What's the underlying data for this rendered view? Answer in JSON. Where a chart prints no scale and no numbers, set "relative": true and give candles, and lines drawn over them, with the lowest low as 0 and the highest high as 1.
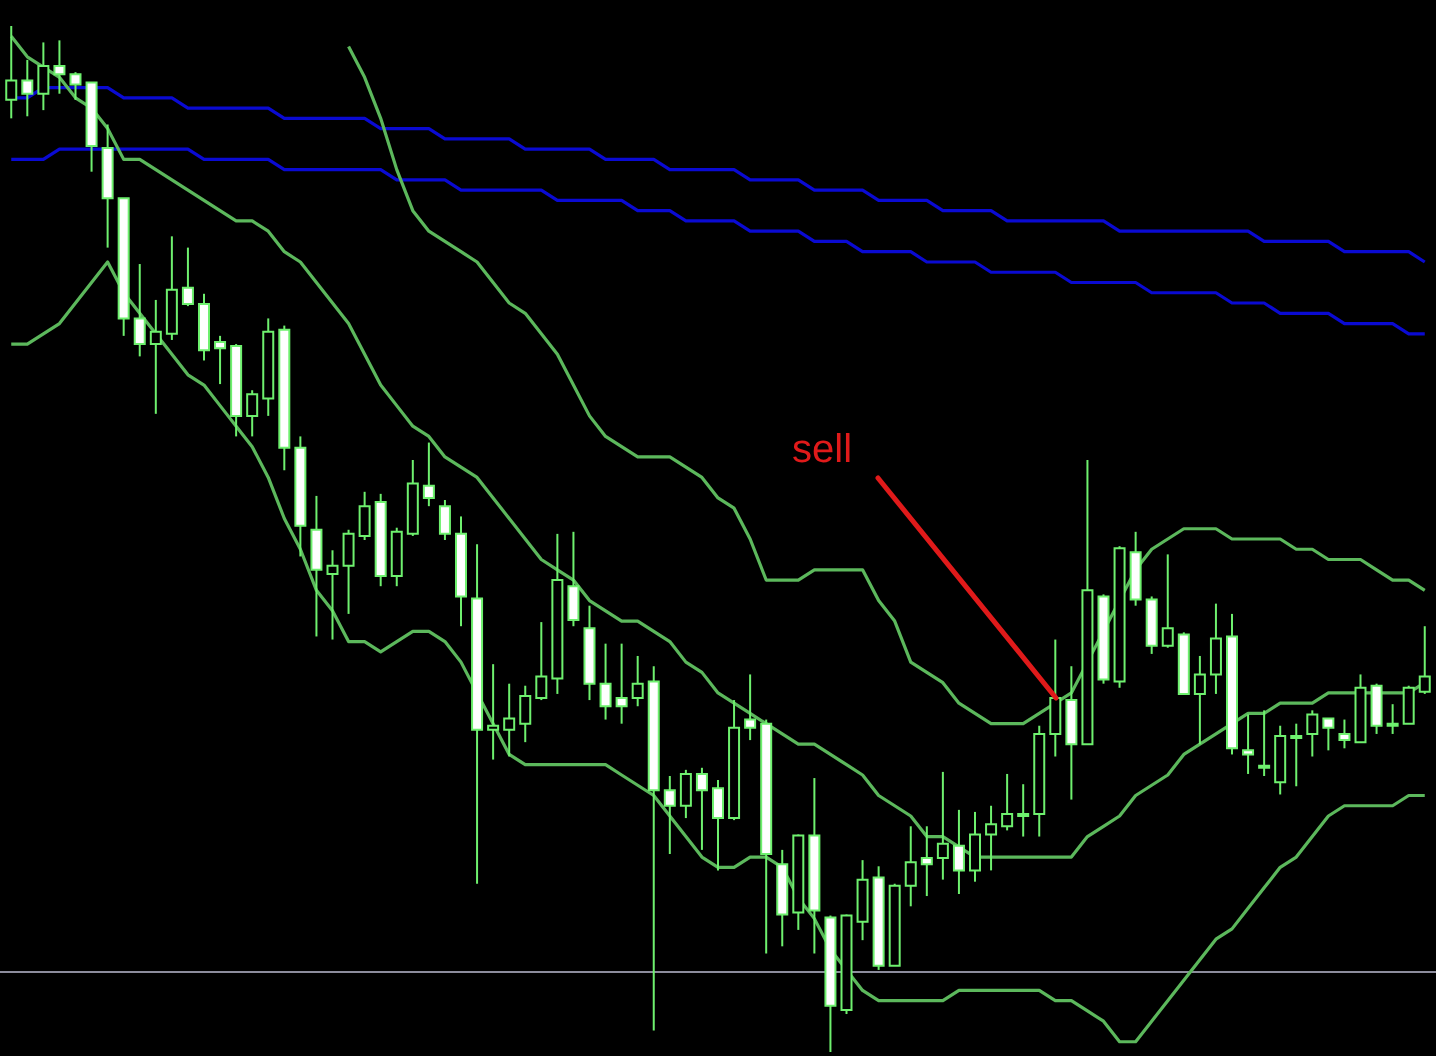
{
  "chart_data": {
    "type": "candlestick",
    "relative": true,
    "categories": [
      null,
      null,
      null,
      null,
      null,
      null,
      null,
      null,
      null,
      null,
      null,
      null,
      null,
      null,
      null,
      null,
      null,
      null,
      null,
      null,
      null,
      null,
      null,
      null,
      null,
      null,
      null,
      null,
      null,
      null,
      null,
      null,
      null,
      null,
      null,
      null,
      null,
      null,
      null,
      null,
      null,
      null,
      null,
      null,
      null,
      null,
      null,
      null,
      null,
      null,
      null,
      null,
      null,
      null,
      null,
      null,
      null,
      null,
      null,
      null,
      null,
      null,
      null,
      null,
      null,
      null,
      null,
      null,
      null,
      null,
      null,
      null,
      null,
      null,
      null,
      null,
      null,
      null,
      null,
      null,
      null,
      null,
      null,
      null,
      null,
      null,
      null,
      null,
      null
    ],
    "ohlc": [
      [
        0.928,
        1.0,
        0.91,
        0.947
      ],
      [
        0.947,
        0.967,
        0.912,
        0.934
      ],
      [
        0.934,
        0.984,
        0.918,
        0.961
      ],
      [
        0.961,
        0.986,
        0.934,
        0.953
      ],
      [
        0.953,
        0.955,
        0.928,
        0.943
      ],
      [
        0.945,
        0.945,
        0.858,
        0.883
      ],
      [
        0.881,
        0.904,
        0.784,
        0.832
      ],
      [
        0.832,
        0.832,
        0.698,
        0.715
      ],
      [
        0.715,
        0.768,
        0.678,
        0.69
      ],
      [
        0.69,
        0.733,
        0.622,
        0.702
      ],
      [
        0.7,
        0.795,
        0.694,
        0.743
      ],
      [
        0.745,
        0.784,
        0.727,
        0.729
      ],
      [
        0.729,
        0.739,
        0.674,
        0.684
      ],
      [
        0.692,
        0.698,
        0.651,
        0.686
      ],
      [
        0.688,
        0.69,
        0.6,
        0.62
      ],
      [
        0.62,
        0.645,
        0.6,
        0.641
      ],
      [
        0.637,
        0.715,
        0.62,
        0.702
      ],
      [
        0.704,
        0.708,
        0.567,
        0.589
      ],
      [
        0.589,
        0.6,
        0.483,
        0.513
      ],
      [
        0.509,
        0.542,
        0.405,
        0.47
      ],
      [
        0.466,
        0.489,
        0.402,
        0.474
      ],
      [
        0.474,
        0.509,
        0.427,
        0.505
      ],
      [
        0.503,
        0.546,
        0.499,
        0.532
      ],
      [
        0.536,
        0.544,
        0.454,
        0.464
      ],
      [
        0.464,
        0.511,
        0.454,
        0.507
      ],
      [
        0.505,
        0.577,
        0.503,
        0.554
      ],
      [
        0.552,
        0.594,
        0.532,
        0.54
      ],
      [
        0.532,
        0.538,
        0.499,
        0.505
      ],
      [
        0.505,
        0.522,
        0.415,
        0.444
      ],
      [
        0.442,
        0.495,
        0.164,
        0.314
      ],
      [
        0.314,
        0.378,
        0.285,
        0.318
      ],
      [
        0.314,
        0.359,
        0.288,
        0.325
      ],
      [
        0.32,
        0.357,
        0.302,
        0.347
      ],
      [
        0.345,
        0.419,
        0.343,
        0.366
      ],
      [
        0.364,
        0.505,
        0.349,
        0.46
      ],
      [
        0.454,
        0.507,
        0.415,
        0.421
      ],
      [
        0.413,
        0.435,
        0.343,
        0.359
      ],
      [
        0.359,
        0.398,
        0.324,
        0.337
      ],
      [
        0.345,
        0.398,
        0.32,
        0.337
      ],
      [
        0.345,
        0.386,
        0.337,
        0.359
      ],
      [
        0.361,
        0.376,
        0.021,
        0.255
      ],
      [
        0.255,
        0.269,
        0.193,
        0.24
      ],
      [
        0.24,
        0.275,
        0.228,
        0.271
      ],
      [
        0.271,
        0.277,
        0.197,
        0.255
      ],
      [
        0.257,
        0.265,
        0.177,
        0.228
      ],
      [
        0.228,
        0.343,
        0.226,
        0.316
      ],
      [
        0.324,
        0.368,
        0.304,
        0.316
      ],
      [
        0.32,
        0.324,
        0.096,
        0.193
      ],
      [
        0.183,
        0.197,
        0.103,
        0.134
      ],
      [
        0.136,
        0.212,
        0.119,
        0.211
      ],
      [
        0.211,
        0.267,
        0.096,
        0.138
      ],
      [
        0.131,
        0.133,
        0.0,
        0.045
      ],
      [
        0.041,
        0.134,
        0.037,
        0.133
      ],
      [
        0.127,
        0.187,
        0.109,
        0.168
      ],
      [
        0.17,
        0.181,
        0.08,
        0.084
      ],
      [
        0.084,
        0.164,
        0.084,
        0.162
      ],
      [
        0.162,
        0.22,
        0.142,
        0.185
      ],
      [
        0.189,
        0.22,
        0.152,
        0.183
      ],
      [
        0.189,
        0.273,
        0.168,
        0.203
      ],
      [
        0.201,
        0.236,
        0.154,
        0.177
      ],
      [
        0.177,
        0.234,
        0.166,
        0.212
      ],
      [
        0.212,
        0.24,
        0.177,
        0.222
      ],
      [
        0.22,
        0.271,
        0.216,
        0.232
      ],
      [
        0.23,
        0.261,
        0.21,
        0.232
      ],
      [
        0.232,
        0.318,
        0.21,
        0.31
      ],
      [
        0.31,
        0.402,
        0.288,
        0.345
      ],
      [
        0.343,
        0.376,
        0.246,
        0.3
      ],
      [
        0.3,
        0.577,
        0.3,
        0.45
      ],
      [
        0.444,
        0.446,
        0.359,
        0.363
      ],
      [
        0.361,
        0.493,
        0.355,
        0.491
      ],
      [
        0.487,
        0.507,
        0.435,
        0.441
      ],
      [
        0.441,
        0.444,
        0.388,
        0.396
      ],
      [
        0.396,
        0.485,
        0.394,
        0.413
      ],
      [
        0.407,
        0.409,
        0.349,
        0.349
      ],
      [
        0.349,
        0.386,
        0.3,
        0.368
      ],
      [
        0.368,
        0.437,
        0.349,
        0.403
      ],
      [
        0.405,
        0.427,
        0.29,
        0.296
      ],
      [
        0.294,
        0.329,
        0.271,
        0.29
      ],
      [
        0.277,
        0.333,
        0.269,
        0.279
      ],
      [
        0.263,
        0.318,
        0.251,
        0.308
      ],
      [
        0.306,
        0.32,
        0.259,
        0.308
      ],
      [
        0.31,
        0.333,
        0.288,
        0.329
      ],
      [
        0.325,
        0.325,
        0.294,
        0.316
      ],
      [
        0.31,
        0.324,
        0.296,
        0.304
      ],
      [
        0.302,
        0.368,
        0.302,
        0.355
      ],
      [
        0.357,
        0.359,
        0.31,
        0.318
      ],
      [
        0.318,
        0.339,
        0.31,
        0.32
      ],
      [
        0.32,
        0.357,
        0.32,
        0.355
      ],
      [
        0.351,
        0.415,
        0.349,
        0.366
      ]
    ],
    "series": [
      {
        "type": "line",
        "color": "#0a0ad2",
        "values": [
          0.93,
          0.93,
          0.94,
          0.94,
          0.94,
          0.94,
          0.94,
          0.93,
          0.93,
          0.93,
          0.93,
          0.92,
          0.92,
          0.92,
          0.92,
          0.92,
          0.92,
          0.91,
          0.91,
          0.91,
          0.91,
          0.91,
          0.91,
          0.9,
          0.9,
          0.9,
          0.9,
          0.89,
          0.89,
          0.89,
          0.89,
          0.89,
          0.88,
          0.88,
          0.88,
          0.88,
          0.88,
          0.87,
          0.87,
          0.87,
          0.87,
          0.86,
          0.86,
          0.86,
          0.86,
          0.86,
          0.85,
          0.85,
          0.85,
          0.85,
          0.84,
          0.84,
          0.84,
          0.84,
          0.83,
          0.83,
          0.83,
          0.83,
          0.82,
          0.82,
          0.82,
          0.82,
          0.81,
          0.81,
          0.81,
          0.81,
          0.81,
          0.81,
          0.81,
          0.8,
          0.8,
          0.8,
          0.8,
          0.8,
          0.8,
          0.8,
          0.8,
          0.8,
          0.79,
          0.79,
          0.79,
          0.79,
          0.79,
          0.78,
          0.78,
          0.78,
          0.78,
          0.78,
          0.77
        ]
      },
      {
        "type": "line",
        "color": "#0a0ad2",
        "values": [
          0.87,
          0.87,
          0.87,
          0.88,
          0.88,
          0.88,
          0.88,
          0.88,
          0.88,
          0.88,
          0.88,
          0.88,
          0.87,
          0.87,
          0.87,
          0.87,
          0.87,
          0.86,
          0.86,
          0.86,
          0.86,
          0.86,
          0.86,
          0.86,
          0.85,
          0.85,
          0.85,
          0.85,
          0.84,
          0.84,
          0.84,
          0.84,
          0.84,
          0.84,
          0.83,
          0.83,
          0.83,
          0.83,
          0.83,
          0.82,
          0.82,
          0.82,
          0.81,
          0.81,
          0.81,
          0.81,
          0.8,
          0.8,
          0.8,
          0.8,
          0.79,
          0.79,
          0.79,
          0.78,
          0.78,
          0.78,
          0.78,
          0.77,
          0.77,
          0.77,
          0.77,
          0.76,
          0.76,
          0.76,
          0.76,
          0.76,
          0.75,
          0.75,
          0.75,
          0.75,
          0.75,
          0.74,
          0.74,
          0.74,
          0.74,
          0.74,
          0.73,
          0.73,
          0.73,
          0.72,
          0.72,
          0.72,
          0.72,
          0.71,
          0.71,
          0.71,
          0.71,
          0.7,
          0.7
        ]
      },
      {
        "type": "line",
        "color": "#5cb85c",
        "values": [
          null,
          null,
          null,
          null,
          null,
          null,
          null,
          null,
          null,
          null,
          null,
          null,
          null,
          null,
          null,
          null,
          null,
          null,
          null,
          null,
          null,
          0.98,
          0.95,
          0.91,
          0.86,
          0.82,
          0.8,
          0.79,
          0.78,
          0.77,
          0.75,
          0.73,
          0.72,
          0.7,
          0.68,
          0.65,
          0.62,
          0.6,
          0.59,
          0.58,
          0.58,
          0.58,
          0.57,
          0.56,
          0.54,
          0.53,
          0.5,
          0.46,
          0.46,
          0.46,
          0.47,
          0.47,
          0.47,
          0.47,
          0.44,
          0.42,
          0.38,
          0.37,
          0.36,
          0.34,
          0.33,
          0.32,
          0.32,
          0.32,
          0.33,
          0.34,
          0.35,
          0.38,
          0.41,
          0.44,
          0.47,
          0.49,
          0.5,
          0.51,
          0.51,
          0.51,
          0.5,
          0.5,
          0.5,
          0.5,
          0.49,
          0.49,
          0.48,
          0.48,
          0.48,
          0.47,
          0.46,
          0.46,
          0.45
        ]
      },
      {
        "type": "line",
        "color": "#5cb85c",
        "values": [
          0.99,
          0.97,
          0.96,
          0.95,
          0.93,
          0.92,
          0.9,
          0.87,
          0.87,
          0.86,
          0.85,
          0.84,
          0.83,
          0.82,
          0.81,
          0.81,
          0.8,
          0.78,
          0.77,
          0.75,
          0.73,
          0.71,
          0.68,
          0.65,
          0.63,
          0.61,
          0.6,
          0.58,
          0.57,
          0.56,
          0.54,
          0.52,
          0.5,
          0.48,
          0.47,
          0.46,
          0.44,
          0.43,
          0.42,
          0.42,
          0.41,
          0.4,
          0.38,
          0.37,
          0.35,
          0.34,
          0.33,
          0.32,
          0.31,
          0.3,
          0.3,
          0.29,
          0.28,
          0.27,
          0.25,
          0.24,
          0.23,
          0.21,
          0.21,
          0.2,
          0.19,
          0.19,
          0.19,
          0.19,
          0.19,
          0.19,
          0.19,
          0.21,
          0.22,
          0.23,
          0.25,
          0.26,
          0.27,
          0.29,
          0.3,
          0.31,
          0.32,
          0.33,
          0.33,
          0.34,
          0.34,
          0.34,
          0.35,
          0.35,
          0.35,
          0.35,
          0.35,
          0.35,
          0.36
        ]
      },
      {
        "type": "line",
        "color": "#5cb85c",
        "values": [
          0.69,
          0.69,
          0.7,
          0.71,
          0.73,
          0.75,
          0.77,
          0.74,
          0.72,
          0.7,
          0.68,
          0.66,
          0.65,
          0.63,
          0.61,
          0.59,
          0.56,
          0.52,
          0.49,
          0.45,
          0.43,
          0.4,
          0.4,
          0.39,
          0.4,
          0.41,
          0.41,
          0.4,
          0.38,
          0.35,
          0.32,
          0.29,
          0.28,
          0.28,
          0.28,
          0.28,
          0.28,
          0.28,
          0.27,
          0.26,
          0.25,
          0.23,
          0.21,
          0.19,
          0.18,
          0.18,
          0.19,
          0.19,
          0.18,
          0.15,
          0.13,
          0.1,
          0.08,
          0.06,
          0.05,
          0.05,
          0.05,
          0.05,
          0.05,
          0.06,
          0.06,
          0.06,
          0.06,
          0.06,
          0.06,
          0.05,
          0.05,
          0.04,
          0.03,
          0.01,
          0.01,
          0.03,
          0.05,
          0.07,
          0.09,
          0.11,
          0.12,
          0.14,
          0.16,
          0.18,
          0.19,
          0.21,
          0.23,
          0.24,
          0.24,
          0.24,
          0.24,
          0.25,
          0.25
        ]
      }
    ],
    "ref_lines": [
      {
        "axis": "y",
        "value": 0.078,
        "color": "#8c8c9c"
      }
    ],
    "annotations": [
      "sell"
    ]
  }
}
